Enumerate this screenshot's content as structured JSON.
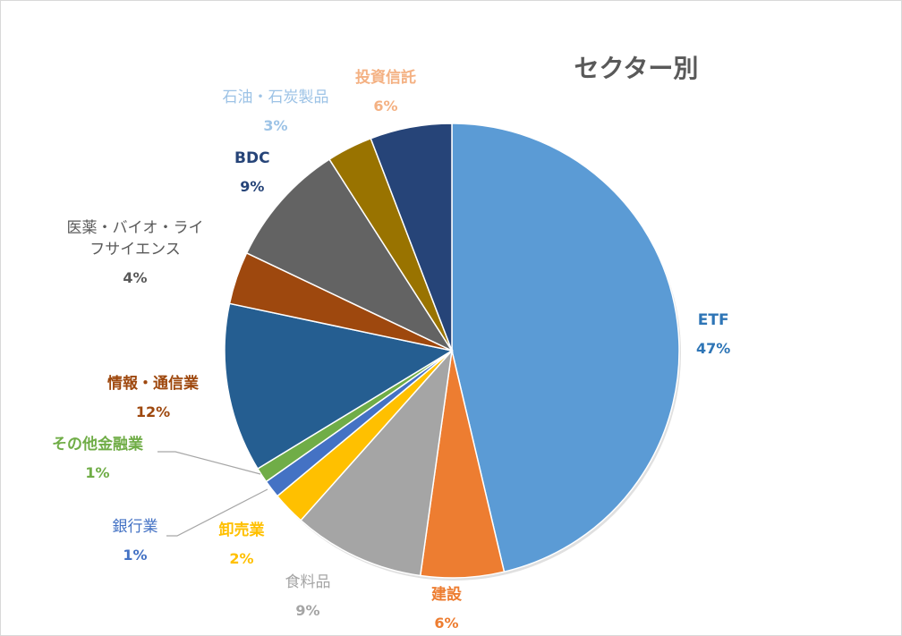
{
  "chart_data": {
    "type": "pie",
    "title": "セクター別",
    "slices": [
      {
        "name": "ETF",
        "label": "ETF",
        "percent": "47%",
        "value": 47,
        "color": "#5b9bd5",
        "label_color": "#2e75b6"
      },
      {
        "name": "建設",
        "label": "建設",
        "percent": "6%",
        "value": 6,
        "color": "#ed7d31",
        "label_color": "#ed7d31"
      },
      {
        "name": "食料品",
        "label": "食料品",
        "percent": "9%",
        "value": 9.5,
        "color": "#a5a5a5",
        "label_color": "#a5a5a5"
      },
      {
        "name": "卸売業",
        "label": "卸売業",
        "percent": "2%",
        "value": 2.4,
        "color": "#ffc000",
        "label_color": "#ffc000"
      },
      {
        "name": "銀行業",
        "label": "銀行業",
        "percent": "1%",
        "value": 1.3,
        "color": "#4472c4",
        "label_color": "#4472c4"
      },
      {
        "name": "その他金融業",
        "label": "その他金融業",
        "percent": "1%",
        "value": 1.1,
        "color": "#70ad47",
        "label_color": "#70ad47"
      },
      {
        "name": "情報・通信業",
        "label": "情報・通信業",
        "percent": "12%",
        "value": 12.2,
        "color": "#255e91",
        "label_color": "#9e480e"
      },
      {
        "name": "医薬・バイオ・ライフサイエンス",
        "label": "医薬・バイオ・ライ\nフサイエンス",
        "percent": "4%",
        "value": 3.8,
        "color": "#9e480e",
        "label_color": "#595959"
      },
      {
        "name": "BDC",
        "label": "BDC",
        "percent": "9%",
        "value": 9,
        "color": "#636363",
        "label_color": "#264478"
      },
      {
        "name": "石油・石炭製品",
        "label": "石油・石炭製品",
        "percent": "3%",
        "value": 3.3,
        "color": "#997300",
        "label_color": "#9dc3e6"
      },
      {
        "name": "投資信託",
        "label": "投資信託",
        "percent": "6%",
        "value": 5.9,
        "color": "#264478",
        "label_color": "#f4b183"
      }
    ]
  }
}
